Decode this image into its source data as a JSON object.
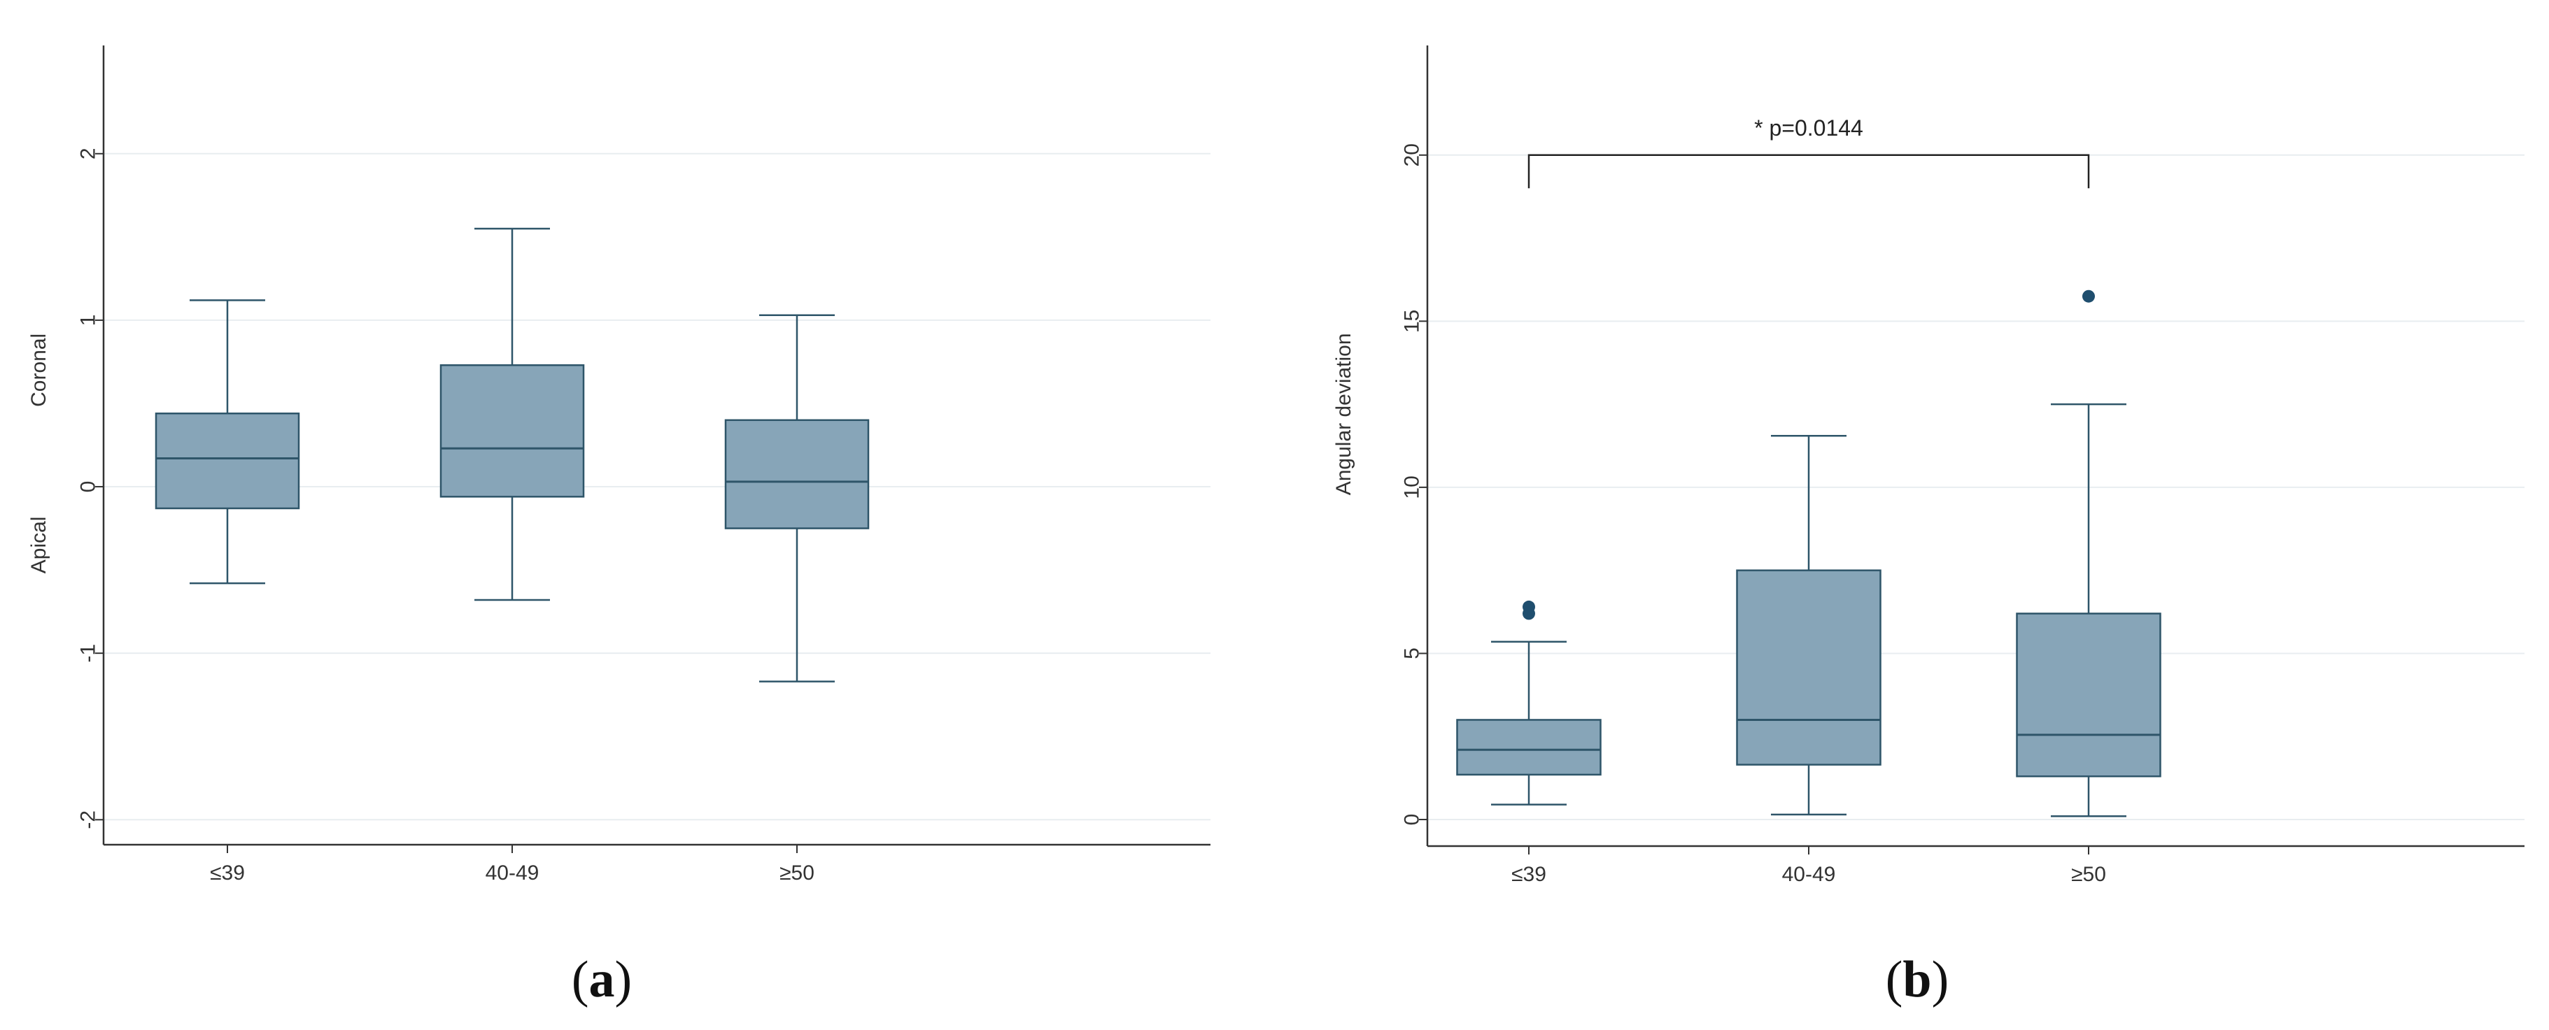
{
  "chart_data": [
    {
      "type": "box",
      "caption_letter": "a",
      "ylabel_low": "Apical",
      "ylabel_high": "Coronal",
      "ylim": [
        -2.15,
        2.65
      ],
      "yticks": [
        -2,
        -1,
        0,
        1,
        2
      ],
      "ytick_labels": [
        "-2",
        "-1",
        "0",
        "1",
        "2"
      ],
      "grid": true,
      "categories": [
        "≤39",
        "40-49",
        "≥50"
      ],
      "boxes": [
        {
          "whisker_low": -0.58,
          "q1": -0.13,
          "median": 0.17,
          "q3": 0.44,
          "whisker_high": 1.12,
          "outliers": []
        },
        {
          "whisker_low": -0.68,
          "q1": -0.06,
          "median": 0.23,
          "q3": 0.73,
          "whisker_high": 1.55,
          "outliers": []
        },
        {
          "whisker_low": -1.17,
          "q1": -0.25,
          "median": 0.03,
          "q3": 0.4,
          "whisker_high": 1.03,
          "outliers": []
        }
      ],
      "colors": {
        "box_fill": "#87a5b8",
        "box_stroke": "#2e5569",
        "outlier": "#1f4e6e",
        "grid": "#e8edf0",
        "axis": "#333333"
      }
    },
    {
      "type": "box",
      "caption_letter": "b",
      "ylabel": "Angular deviation",
      "ylim": [
        -0.8,
        23.3
      ],
      "yticks": [
        0,
        5,
        10,
        15,
        20
      ],
      "ytick_labels": [
        "0",
        "5",
        "10",
        "15",
        "20"
      ],
      "grid": true,
      "categories": [
        "≤39",
        "40-49",
        "≥50"
      ],
      "boxes": [
        {
          "whisker_low": 0.45,
          "q1": 1.35,
          "median": 2.1,
          "q3": 3.0,
          "whisker_high": 5.35,
          "outliers": [
            6.2,
            6.4
          ]
        },
        {
          "whisker_low": 0.15,
          "q1": 1.65,
          "median": 3.0,
          "q3": 7.5,
          "whisker_high": 11.55,
          "outliers": []
        },
        {
          "whisker_low": 0.1,
          "q1": 1.3,
          "median": 2.55,
          "q3": 6.2,
          "whisker_high": 12.5,
          "outliers": [
            15.75
          ]
        }
      ],
      "annotation": {
        "text": "* p=0.0144",
        "from_category": 0,
        "to_category": 2,
        "y": 20.0,
        "drop": 1.0
      },
      "colors": {
        "box_fill": "#87a5b8",
        "box_stroke": "#2e5569",
        "outlier": "#1f4e6e",
        "grid": "#e8edf0",
        "axis": "#333333"
      }
    }
  ]
}
